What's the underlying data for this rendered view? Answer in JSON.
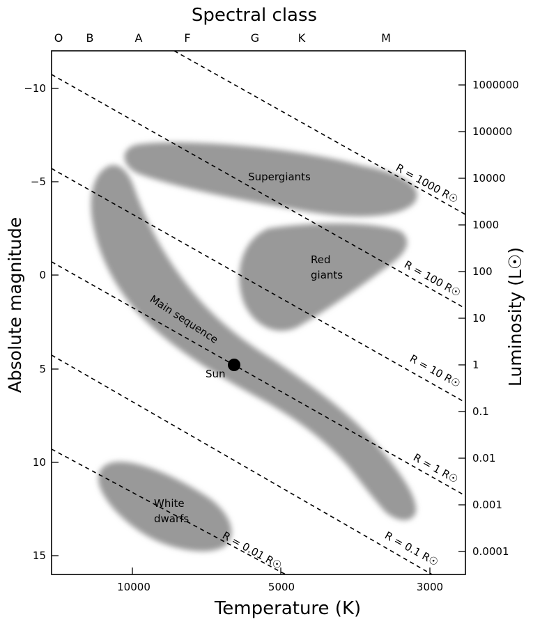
{
  "title": "Spectral class",
  "spectral_classes": [
    "O",
    "B",
    "A",
    "F",
    "G",
    "K",
    "M"
  ],
  "left_axis": {
    "label": "Absolute magnitude",
    "ticks": [
      "−10",
      "−5",
      "0",
      "5",
      "10",
      "15"
    ]
  },
  "right_axis": {
    "label": "Luminosity (L☉)",
    "ticks": [
      "1000000",
      "100000",
      "10000",
      "1000",
      "100",
      "10",
      "1",
      "0.1",
      "0.01",
      "0.001",
      "0.0001"
    ]
  },
  "bottom_axis": {
    "label": "Temperature (K)",
    "ticks": [
      "10000",
      "5000",
      "3000"
    ]
  },
  "regions": {
    "supergiants": "Supergiants",
    "red_giants_line1": "Red",
    "red_giants_line2": "giants",
    "main_sequence": "Main sequence",
    "white_dwarfs_line1": "White",
    "white_dwarfs_line2": "dwarfs"
  },
  "sun_label": "Sun",
  "radius_lines": [
    {
      "label": "R = 1000 R☉"
    },
    {
      "label": "R = 100 R☉"
    },
    {
      "label": "R = 10 R☉"
    },
    {
      "label": "R = 1 R☉"
    },
    {
      "label": "R = 0.1 R☉"
    },
    {
      "label": "R = 0.01 R☉"
    }
  ],
  "colors": {
    "region_fill": "#999999",
    "frame": "#000000",
    "sun": "#000000"
  }
}
